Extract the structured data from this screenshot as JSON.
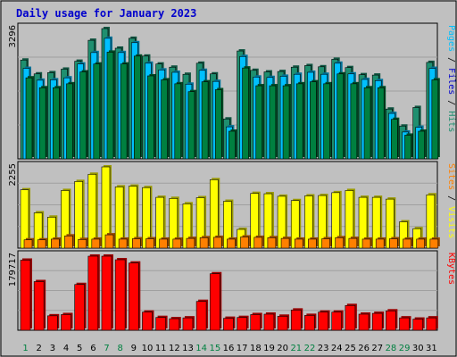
{
  "colors": {
    "background": "#c0c0c0",
    "panel": "#c0c0c0",
    "title": "#0000cc",
    "pages": "#008040",
    "files": "#00c0ff",
    "hits": "#1f8f6f",
    "visits": "#ffff00",
    "sites": "#ff8000",
    "kbytes": "#ff0000",
    "weekend_day": "#008040",
    "weekday": "#000000",
    "gridline": "#a0a0a0"
  },
  "chart_data": {
    "type": "bar",
    "title": "Daily usage for January 2023",
    "categories": [
      "1",
      "2",
      "3",
      "4",
      "5",
      "6",
      "7",
      "8",
      "9",
      "10",
      "11",
      "12",
      "13",
      "14",
      "15",
      "16",
      "17",
      "18",
      "19",
      "20",
      "21",
      "22",
      "23",
      "24",
      "25",
      "26",
      "27",
      "28",
      "29",
      "30",
      "31"
    ],
    "weekend_days": [
      "1",
      "7",
      "8",
      "14",
      "15",
      "21",
      "22",
      "28",
      "29"
    ],
    "panels": [
      {
        "id": "hits-files-pages",
        "max_label": "3296",
        "ymax": 3296,
        "right_label_parts": [
          {
            "text": "Pages",
            "color_key": "files"
          },
          {
            "text": " / ",
            "color_key": "weekday"
          },
          {
            "text": "Files",
            "color_key": "title"
          },
          {
            "text": " / ",
            "color_key": "weekday"
          },
          {
            "text": "Hits",
            "color_key": "hits"
          }
        ],
        "series": [
          {
            "name": "Hits",
            "color_key": "hits",
            "values": [
              2500,
              2150,
              2180,
              2270,
              2470,
              3000,
              3296,
              2800,
              3050,
              2600,
              2400,
              2320,
              2140,
              2420,
              2150,
              1010,
              2730,
              2240,
              2200,
              2210,
              2320,
              2360,
              2330,
              2520,
              2310,
              2130,
              2120,
              1260,
              830,
              1300,
              2440
            ]
          },
          {
            "name": "Files",
            "color_key": "files",
            "values": [
              2290,
              1990,
              2000,
              2050,
              2400,
              2690,
              3050,
              2690,
              2940,
              2420,
              2250,
              2190,
              1890,
              2240,
              1960,
              810,
              2590,
              2070,
              2060,
              2090,
              2140,
              2190,
              2140,
              2420,
              2150,
              2010,
              1980,
              1150,
              680,
              800,
              2290
            ]
          },
          {
            "name": "Pages",
            "color_key": "pages",
            "values": [
              2050,
              1800,
              1800,
              1900,
              2200,
              2400,
              2700,
              2400,
              2600,
              2100,
              2000,
              1900,
              1700,
              1950,
              1750,
              700,
              2300,
              1850,
              1850,
              1850,
              1900,
              1950,
              1900,
              2150,
              1900,
              1800,
              1800,
              1000,
              600,
              700,
              2000
            ]
          }
        ]
      },
      {
        "id": "visits-sites",
        "max_label": "2255",
        "ymax": 2255,
        "right_label_parts": [
          {
            "text": "Sites",
            "color_key": "sites"
          },
          {
            "text": " / ",
            "color_key": "weekday"
          },
          {
            "text": "Visits",
            "color_key": "visits"
          }
        ],
        "series": [
          {
            "name": "Visits",
            "color_key": "visits",
            "values": [
              1620,
              980,
              860,
              1600,
              1850,
              2050,
              2255,
              1700,
              1720,
              1680,
              1410,
              1380,
              1230,
              1400,
              1900,
              1300,
              520,
              1520,
              1510,
              1440,
              1320,
              1450,
              1460,
              1540,
              1600,
              1410,
              1410,
              1360,
              730,
              540,
              1480
            ]
          },
          {
            "name": "Sites",
            "color_key": "sites",
            "values": [
              230,
              230,
              250,
              340,
              240,
              250,
              370,
              250,
              260,
              260,
              250,
              250,
              270,
              290,
              300,
              250,
              310,
              300,
              290,
              270,
              250,
              250,
              260,
              290,
              270,
              250,
              250,
              260,
              250,
              250,
              250
            ]
          }
        ]
      },
      {
        "id": "kbytes",
        "max_label": "179717",
        "ymax": 179717,
        "right_label_parts": [
          {
            "text": "KBytes",
            "color_key": "kbytes"
          }
        ],
        "series": [
          {
            "name": "KBytes",
            "color_key": "kbytes",
            "values": [
              170000,
              118000,
              35000,
              38000,
              111000,
              179717,
              179717,
              171000,
              163000,
              44000,
              31000,
              28000,
              30000,
              70000,
              137000,
              29000,
              31000,
              38000,
              39000,
              34000,
              49000,
              36000,
              44000,
              44000,
              60000,
              39000,
              41000,
              47000,
              30000,
              27000,
              30000
            ]
          }
        ]
      }
    ]
  }
}
